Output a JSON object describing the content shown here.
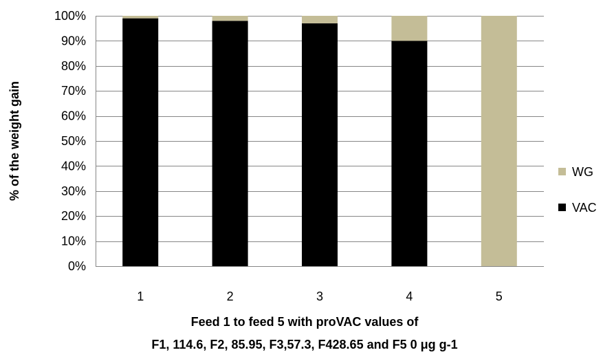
{
  "chart_data": {
    "type": "bar",
    "stacked": "percent",
    "categories": [
      "1",
      "2",
      "3",
      "4",
      "5"
    ],
    "series": [
      {
        "name": "VAC",
        "values": [
          99,
          98,
          97,
          90,
          0
        ],
        "color": "#000000"
      },
      {
        "name": "WG",
        "values": [
          1,
          2,
          3,
          10,
          100
        ],
        "color": "#c4bd97"
      }
    ],
    "ylabel": "% of the weight gain",
    "xlabel_lines": [
      "Feed 1 to feed 5  with proVAC  values of",
      "F1, 114.6, F2, 85.95, F3,57.3, F428.65 and F5 0 μg g-1"
    ],
    "ylim": [
      0,
      100
    ],
    "yticks": [
      "0%",
      "10%",
      "20%",
      "30%",
      "40%",
      "50%",
      "60%",
      "70%",
      "80%",
      "90%",
      "100%"
    ],
    "grid": true,
    "legend": {
      "position": "right",
      "entries": [
        "WG",
        "VAC"
      ]
    }
  }
}
